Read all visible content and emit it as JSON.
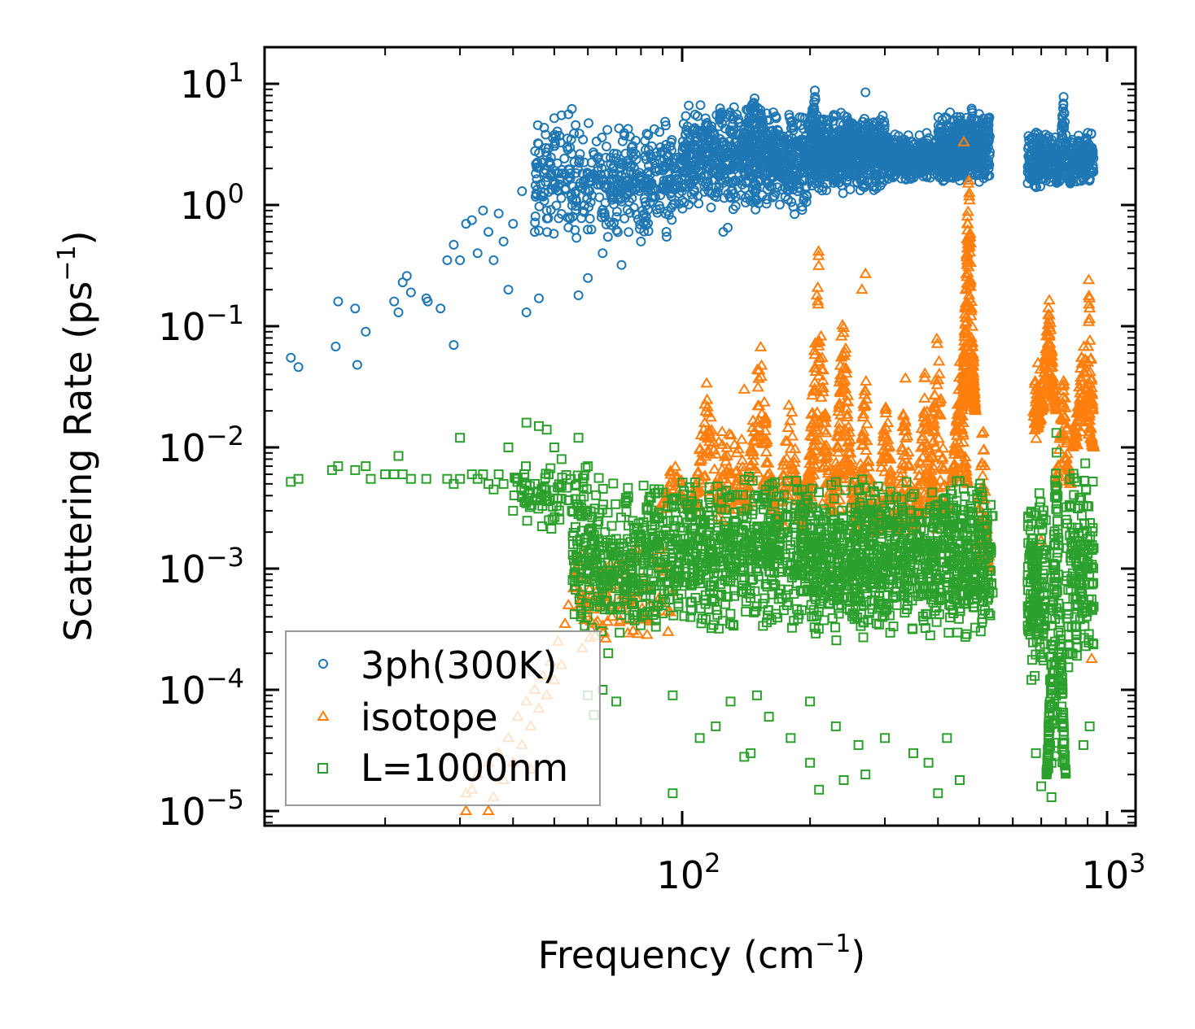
{
  "chart_data": {
    "type": "scatter",
    "title": "",
    "xlabel": {
      "text": "Frequency (cm",
      "sup": "−1",
      "close": ")"
    },
    "ylabel": {
      "text": "Scattering Rate (ps",
      "sup": "−1",
      "close": ")"
    },
    "xscale": "log",
    "yscale": "log",
    "xlim": [
      10.4,
      1170
    ],
    "ylim": [
      7.5e-06,
      20
    ],
    "grid": false,
    "legend_position": "lower-left",
    "x_ticks": [
      {
        "value": 100,
        "base": "10",
        "exp": "2"
      },
      {
        "value": 1000,
        "base": "10",
        "exp": "3"
      }
    ],
    "y_ticks": [
      {
        "value": 10,
        "base": "10",
        "exp": "1"
      },
      {
        "value": 1,
        "base": "10",
        "exp": "0"
      },
      {
        "value": 0.1,
        "base": "10",
        "exp": "−1"
      },
      {
        "value": 0.01,
        "base": "10",
        "exp": "−2"
      },
      {
        "value": 0.001,
        "base": "10",
        "exp": "−3"
      },
      {
        "value": 0.0001,
        "base": "10",
        "exp": "−4"
      },
      {
        "value": 1e-05,
        "base": "10",
        "exp": "−5"
      }
    ],
    "series": [
      {
        "name": "3ph(300K)",
        "marker": "circle",
        "color": "#1f77b4",
        "points": [
          [
            12,
            0.055
          ],
          [
            12.5,
            0.046
          ],
          [
            15.5,
            0.16
          ],
          [
            15.3,
            0.068
          ],
          [
            17,
            0.14
          ],
          [
            17.2,
            0.048
          ],
          [
            18,
            0.09
          ],
          [
            21,
            0.16
          ],
          [
            21.5,
            0.13
          ],
          [
            22,
            0.23
          ],
          [
            22.5,
            0.26
          ],
          [
            23,
            0.19
          ],
          [
            25,
            0.17
          ],
          [
            25.2,
            0.16
          ],
          [
            27,
            0.14
          ],
          [
            28,
            0.35
          ],
          [
            29,
            0.07
          ],
          [
            29,
            0.47
          ],
          [
            30,
            0.35
          ],
          [
            31,
            0.7
          ],
          [
            32,
            0.75
          ],
          [
            33,
            0.4
          ],
          [
            34,
            0.9
          ],
          [
            35,
            0.6
          ],
          [
            36,
            0.35
          ],
          [
            37,
            0.85
          ],
          [
            38,
            0.5
          ],
          [
            39,
            0.2
          ],
          [
            40,
            0.7
          ],
          [
            42,
            1.3
          ],
          [
            43,
            0.13
          ],
          [
            45,
            0.6
          ],
          [
            46,
            0.17
          ],
          [
            48,
            0.9
          ],
          [
            50,
            5.2
          ],
          [
            52,
            5.5
          ],
          [
            54,
            5.6
          ],
          [
            55,
            6.2
          ],
          [
            57,
            0.18
          ],
          [
            60,
            0.25
          ],
          [
            65,
            0.4
          ],
          [
            72,
            0.32
          ],
          [
            80,
            0.5
          ],
          [
            125,
            0.6
          ],
          [
            128,
            0.65
          ],
          [
            270,
            8.5
          ],
          [
            790,
            7.8
          ]
        ],
        "bands": [
          [
            45,
            100,
            0.5,
            5,
            450,
            "flat"
          ],
          [
            100,
            200,
            0.8,
            7,
            700,
            "flat"
          ],
          [
            130,
            170,
            2,
            9,
            150,
            "peak"
          ],
          [
            200,
            300,
            1.2,
            6,
            600,
            "flat"
          ],
          [
            195,
            215,
            2,
            10,
            100,
            "peak"
          ],
          [
            300,
            450,
            1.5,
            4,
            500,
            "flat"
          ],
          [
            400,
            530,
            1.5,
            6,
            400,
            "flat"
          ],
          [
            460,
            500,
            2,
            7,
            100,
            "peak"
          ],
          [
            650,
            760,
            1.3,
            4.5,
            200,
            "flat"
          ],
          [
            760,
            820,
            1.5,
            8,
            100,
            "peak"
          ],
          [
            820,
            930,
            1.5,
            4,
            150,
            "flat"
          ]
        ]
      },
      {
        "name": "isotope",
        "marker": "triangle",
        "color": "#ff7f0e",
        "points": [
          [
            31,
            1.4e-05
          ],
          [
            32,
            1.5e-05
          ],
          [
            33,
            2e-05
          ],
          [
            35,
            2.5e-05
          ],
          [
            37,
            3e-05
          ],
          [
            39,
            4e-05
          ],
          [
            41,
            6e-05
          ],
          [
            43,
            8e-05
          ],
          [
            45,
            0.0001
          ],
          [
            47,
            0.00013
          ],
          [
            49,
            0.00017
          ],
          [
            51,
            0.00025
          ],
          [
            53,
            0.00035
          ],
          [
            54,
            0.0005
          ],
          [
            56,
            0.0007
          ],
          [
            31,
            1e-05
          ],
          [
            35,
            1e-05
          ],
          [
            36,
            1.3e-05
          ],
          [
            40,
            2.5e-05
          ],
          [
            42,
            3.5e-05
          ],
          [
            44,
            5e-05
          ],
          [
            46,
            7e-05
          ],
          [
            48,
            9e-05
          ],
          [
            50,
            0.00012
          ],
          [
            52,
            0.00016
          ],
          [
            44,
            2.2e-05
          ],
          [
            38,
            1.8e-05
          ],
          [
            270,
            0.27
          ],
          [
            265,
            0.2
          ],
          [
            460,
            3.3
          ],
          [
            905,
            0.24
          ],
          [
            700,
            0.0017
          ],
          [
            920,
            0.00018
          ],
          [
            140,
            0.03
          ]
        ],
        "bands": [
          [
            55,
            70,
            0.0002,
            0.0015,
            60,
            "flat"
          ],
          [
            70,
            95,
            0.0002,
            0.002,
            60,
            "flat"
          ],
          [
            88,
            105,
            0.003,
            0.01,
            40,
            "peak"
          ],
          [
            105,
            125,
            0.003,
            0.045,
            80,
            "peak"
          ],
          [
            120,
            140,
            0.002,
            0.02,
            60,
            "flat"
          ],
          [
            140,
            165,
            0.003,
            0.1,
            100,
            "peak"
          ],
          [
            165,
            195,
            0.002,
            0.03,
            80,
            "peak"
          ],
          [
            195,
            225,
            0.003,
            0.45,
            150,
            "peak"
          ],
          [
            225,
            255,
            0.003,
            0.2,
            120,
            "peak"
          ],
          [
            255,
            285,
            0.002,
            0.05,
            80,
            "peak"
          ],
          [
            285,
            320,
            0.002,
            0.03,
            80,
            "peak"
          ],
          [
            320,
            350,
            0.002,
            0.05,
            60,
            "peak"
          ],
          [
            350,
            400,
            0.002,
            0.06,
            80,
            "peak"
          ],
          [
            380,
            420,
            0.003,
            0.15,
            70,
            "peak"
          ],
          [
            430,
            470,
            0.005,
            0.06,
            80,
            "peak"
          ],
          [
            455,
            490,
            0.02,
            2.5,
            200,
            "peak"
          ],
          [
            490,
            530,
            0.001,
            0.02,
            60,
            "peak"
          ],
          [
            670,
            700,
            0.01,
            0.05,
            50,
            "flat"
          ],
          [
            700,
            760,
            0.02,
            0.2,
            120,
            "peak"
          ],
          [
            760,
            820,
            0.005,
            0.05,
            60,
            "peak"
          ],
          [
            830,
            930,
            0.01,
            0.09,
            100,
            "peak"
          ],
          [
            890,
            925,
            0.02,
            0.24,
            40,
            "peak"
          ]
        ]
      },
      {
        "name": "L=1000nm",
        "marker": "square",
        "color": "#2ca02c",
        "points": [
          [
            12,
            0.0052
          ],
          [
            12.5,
            0.0055
          ],
          [
            15,
            0.0065
          ],
          [
            15.5,
            0.007
          ],
          [
            17,
            0.0065
          ],
          [
            18,
            0.007
          ],
          [
            18.5,
            0.0055
          ],
          [
            20,
            0.006
          ],
          [
            21,
            0.006
          ],
          [
            21.5,
            0.0085
          ],
          [
            22,
            0.006
          ],
          [
            23,
            0.0055
          ],
          [
            25,
            0.0055
          ],
          [
            28,
            0.0055
          ],
          [
            29,
            0.005
          ],
          [
            30,
            0.0055
          ],
          [
            30,
            0.012
          ],
          [
            32,
            0.006
          ],
          [
            33,
            0.0055
          ],
          [
            34,
            0.006
          ],
          [
            35,
            0.005
          ],
          [
            36,
            0.0045
          ],
          [
            37,
            0.006
          ],
          [
            38,
            0.005
          ],
          [
            39,
            0.01
          ],
          [
            40,
            0.003
          ],
          [
            41,
            0.0055
          ],
          [
            42,
            0.004
          ],
          [
            43,
            0.016
          ],
          [
            45,
            0.005
          ],
          [
            46,
            0.015
          ],
          [
            48,
            0.014
          ],
          [
            50,
            0.01
          ],
          [
            52,
            0.008
          ],
          [
            55,
            0.003
          ],
          [
            57,
            0.012
          ],
          [
            60,
            0.007
          ],
          [
            60,
            9e-05
          ],
          [
            62,
            6.2e-05
          ],
          [
            65,
            0.0001
          ],
          [
            67,
            0.0002
          ],
          [
            70,
            8e-05
          ],
          [
            95,
            9e-05
          ],
          [
            95,
            1.4e-05
          ],
          [
            110,
            4e-05
          ],
          [
            120,
            5e-05
          ],
          [
            130,
            8e-05
          ],
          [
            140,
            2.8e-05
          ],
          [
            145,
            3e-05
          ],
          [
            150,
            9e-05
          ],
          [
            160,
            6e-05
          ],
          [
            180,
            4e-05
          ],
          [
            200,
            2.5e-05
          ],
          [
            200,
            8e-05
          ],
          [
            210,
            1.5e-05
          ],
          [
            230,
            5e-05
          ],
          [
            240,
            1.8e-05
          ],
          [
            260,
            3.5e-05
          ],
          [
            270,
            2e-05
          ],
          [
            300,
            4e-05
          ],
          [
            350,
            3e-05
          ],
          [
            380,
            2.5e-05
          ],
          [
            400,
            1.4e-05
          ],
          [
            420,
            4e-05
          ],
          [
            450,
            1.8e-05
          ],
          [
            700,
            1.6e-05
          ],
          [
            740,
            1.3e-05
          ],
          [
            740,
            2.5e-05
          ],
          [
            880,
            3.5e-05
          ],
          [
            910,
            5e-05
          ],
          [
            680,
            3e-05
          ]
        ],
        "bands": [
          [
            40,
            60,
            0.002,
            0.008,
            80,
            "flat"
          ],
          [
            55,
            80,
            0.00025,
            0.006,
            250,
            "flat"
          ],
          [
            80,
            200,
            0.0003,
            0.006,
            700,
            "flat"
          ],
          [
            200,
            540,
            0.00025,
            0.006,
            1000,
            "flat"
          ],
          [
            650,
            720,
            0.0001,
            0.005,
            150,
            "flat"
          ],
          [
            720,
            800,
            2e-05,
            0.015,
            200,
            "peak"
          ],
          [
            800,
            930,
            0.0001,
            0.008,
            150,
            "flat"
          ]
        ]
      }
    ]
  }
}
